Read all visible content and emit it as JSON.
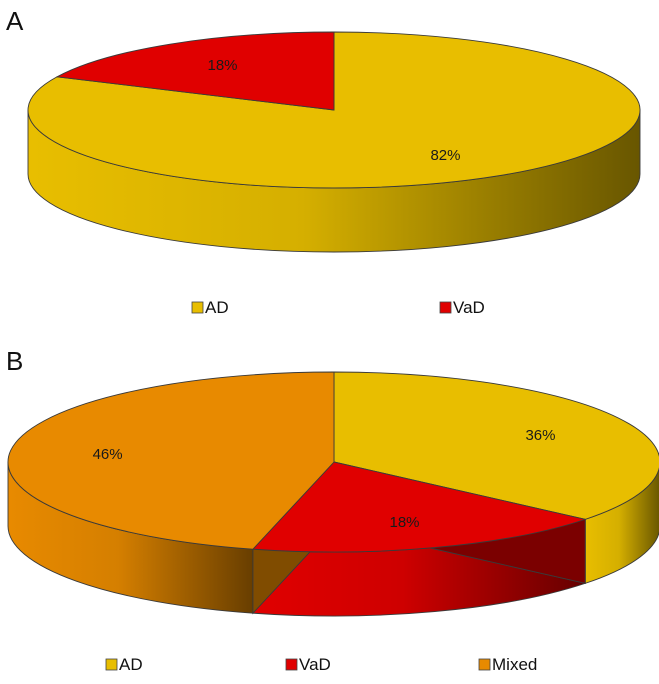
{
  "chart_data": [
    {
      "type": "pie",
      "panel_label": "A",
      "slices": [
        {
          "name": "AD",
          "value": 82,
          "label": "82%",
          "color": "#E8BE00"
        },
        {
          "name": "VaD",
          "value": 18,
          "label": "18%",
          "color": "#E00000"
        }
      ],
      "legend": {
        "placement": "bottom",
        "entries": [
          "AD",
          "VaD"
        ]
      }
    },
    {
      "type": "pie",
      "panel_label": "B",
      "slices": [
        {
          "name": "AD",
          "value": 36,
          "label": "36%",
          "color": "#E8BE00"
        },
        {
          "name": "VaD",
          "value": 18,
          "label": "18%",
          "color": "#E00000"
        },
        {
          "name": "Mixed",
          "value": 46,
          "label": "46%",
          "color": "#E88A00"
        }
      ],
      "legend": {
        "placement": "bottom",
        "entries": [
          "AD",
          "VaD",
          "Mixed"
        ]
      }
    }
  ]
}
